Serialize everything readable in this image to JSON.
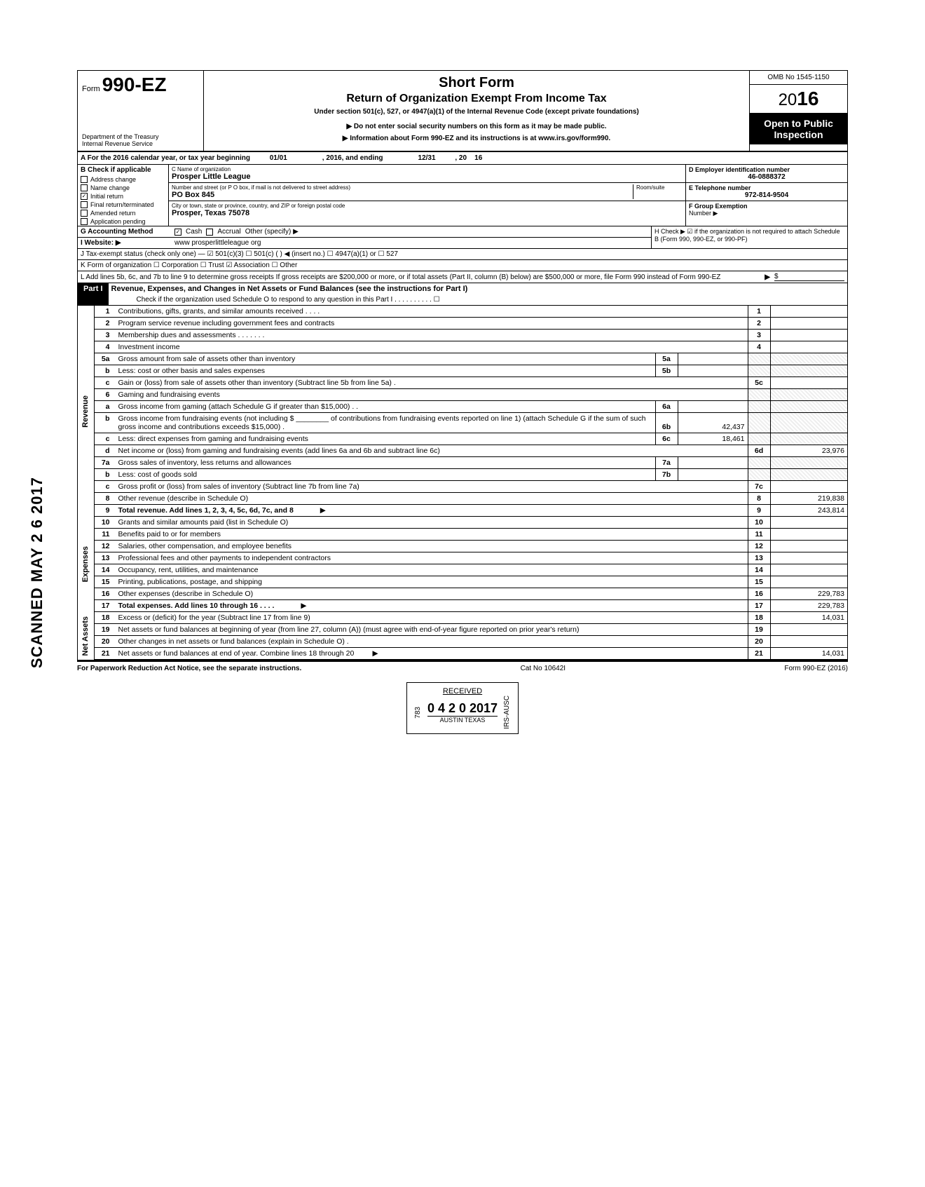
{
  "header": {
    "form_prefix": "Form",
    "form_number": "990-EZ",
    "title": "Short Form",
    "subtitle": "Return of Organization Exempt From Income Tax",
    "under": "Under section 501(c), 527, or 4947(a)(1) of the Internal Revenue Code (except private foundations)",
    "note1": "▶ Do not enter social security numbers on this form as it may be made public.",
    "note2": "▶ Information about Form 990-EZ and its instructions is at www.irs.gov/form990.",
    "dept1": "Department of the Treasury",
    "dept2": "Internal Revenue Service",
    "omb": "OMB No 1545-1150",
    "year_prefix": "20",
    "year_bold": "16",
    "open": "Open to Public Inspection"
  },
  "row_a": {
    "label": "A For the 2016 calendar year, or tax year beginning",
    "begin": "01/01",
    "mid": ", 2016, and ending",
    "end": "12/31",
    "suffix": ", 20",
    "yr": "16"
  },
  "col_b": {
    "header": "B Check if applicable",
    "items": [
      {
        "label": "Address change",
        "checked": false
      },
      {
        "label": "Name change",
        "checked": false
      },
      {
        "label": "Initial return",
        "checked": true
      },
      {
        "label": "Final return/terminated",
        "checked": false
      },
      {
        "label": "Amended return",
        "checked": false
      },
      {
        "label": "Application pending",
        "checked": false
      }
    ]
  },
  "col_c": {
    "name_label": "C Name of organization",
    "name": "Prosper Little League",
    "addr_label": "Number and street (or P O box, if mail is not delivered to street address)",
    "room_label": "Room/suite",
    "addr": "PO Box 845",
    "city_label": "City or town, state or province, country, and ZIP or foreign postal code",
    "city": "Prosper, Texas 75078"
  },
  "col_de": {
    "d_label": "D Employer identification number",
    "d_val": "46-0888372",
    "e_label": "E Telephone number",
    "e_val": "972-814-9504",
    "f_label": "F Group Exemption",
    "f_label2": "Number ▶"
  },
  "meta": {
    "g": "G Accounting Method",
    "g_cash": "Cash",
    "g_accrual": "Accrual",
    "g_other": "Other (specify) ▶",
    "h": "H Check ▶ ☑ if the organization is not required to attach Schedule B (Form 990, 990-EZ, or 990-PF)",
    "i": "I Website: ▶",
    "i_val": "www prosperlittleleague org",
    "j": "J Tax-exempt status (check only one) — ☑ 501(c)(3)   ☐ 501(c) (      ) ◀ (insert no.) ☐ 4947(a)(1) or  ☐ 527",
    "k": "K Form of organization   ☐ Corporation   ☐ Trust   ☑ Association   ☐ Other",
    "l": "L Add lines 5b, 6c, and 7b to line 9 to determine gross receipts  If gross receipts are $200,000 or more, or if total assets (Part II, column (B) below) are $500,000 or more, file Form 990 instead of Form 990-EZ",
    "l_arrow": "▶",
    "l_dollar": "$"
  },
  "part1": {
    "label": "Part I",
    "title": "Revenue, Expenses, and Changes in Net Assets or Fund Balances (see the instructions for Part I)",
    "check": "Check if the organization used Schedule O to respond to any question in this Part I . . . . . . . . . . ☐"
  },
  "sides": {
    "revenue": "Revenue",
    "expenses": "Expenses",
    "netassets": "Net Assets"
  },
  "lines": {
    "l1": {
      "n": "1",
      "d": "Contributions, gifts, grants, and similar amounts received . . . .",
      "rn": "1",
      "rv": ""
    },
    "l2": {
      "n": "2",
      "d": "Program service revenue including government fees and contracts",
      "rn": "2",
      "rv": ""
    },
    "l3": {
      "n": "3",
      "d": "Membership dues and assessments . . . . . . .",
      "rn": "3",
      "rv": ""
    },
    "l4": {
      "n": "4",
      "d": "Investment income",
      "rn": "4",
      "rv": ""
    },
    "l5a": {
      "n": "5a",
      "d": "Gross amount from sale of assets other than inventory",
      "mn": "5a",
      "mv": ""
    },
    "l5b": {
      "n": "b",
      "d": "Less: cost or other basis and sales expenses",
      "mn": "5b",
      "mv": ""
    },
    "l5c": {
      "n": "c",
      "d": "Gain or (loss) from sale of assets other than inventory (Subtract line 5b from line 5a) .",
      "rn": "5c",
      "rv": ""
    },
    "l6": {
      "n": "6",
      "d": "Gaming and fundraising events"
    },
    "l6a": {
      "n": "a",
      "d": "Gross income from gaming (attach Schedule G if greater than $15,000) . .",
      "mn": "6a",
      "mv": ""
    },
    "l6b": {
      "n": "b",
      "d": "Gross income from fundraising events (not including  $ ________ of contributions from fundraising events reported on line 1) (attach Schedule G if the sum of such gross income and contributions exceeds $15,000) .",
      "mn": "6b",
      "mv": "42,437"
    },
    "l6c": {
      "n": "c",
      "d": "Less: direct expenses from gaming and fundraising events",
      "mn": "6c",
      "mv": "18,461"
    },
    "l6d": {
      "n": "d",
      "d": "Net income or (loss) from gaming and fundraising events (add lines 6a and 6b and subtract line 6c)",
      "rn": "6d",
      "rv": "23,976"
    },
    "l7a": {
      "n": "7a",
      "d": "Gross sales of inventory, less returns and allowances",
      "mn": "7a",
      "mv": ""
    },
    "l7b": {
      "n": "b",
      "d": "Less: cost of goods sold",
      "mn": "7b",
      "mv": ""
    },
    "l7c": {
      "n": "c",
      "d": "Gross profit or (loss) from sales of inventory (Subtract line 7b from line 7a)",
      "rn": "7c",
      "rv": ""
    },
    "l8": {
      "n": "8",
      "d": "Other revenue (describe in Schedule O)",
      "rn": "8",
      "rv": "219,838"
    },
    "l9": {
      "n": "9",
      "d": "Total revenue. Add lines 1, 2, 3, 4, 5c, 6d, 7c, and 8",
      "rn": "9",
      "rv": "243,814"
    },
    "l10": {
      "n": "10",
      "d": "Grants and similar amounts paid (list in Schedule O)",
      "rn": "10",
      "rv": ""
    },
    "l11": {
      "n": "11",
      "d": "Benefits paid to or for members",
      "rn": "11",
      "rv": ""
    },
    "l12": {
      "n": "12",
      "d": "Salaries, other compensation, and employee benefits",
      "rn": "12",
      "rv": ""
    },
    "l13": {
      "n": "13",
      "d": "Professional fees and other payments to independent contractors",
      "rn": "13",
      "rv": ""
    },
    "l14": {
      "n": "14",
      "d": "Occupancy, rent, utilities, and maintenance",
      "rn": "14",
      "rv": ""
    },
    "l15": {
      "n": "15",
      "d": "Printing, publications, postage, and shipping",
      "rn": "15",
      "rv": ""
    },
    "l16": {
      "n": "16",
      "d": "Other expenses (describe in Schedule O)",
      "rn": "16",
      "rv": "229,783"
    },
    "l17": {
      "n": "17",
      "d": "Total expenses. Add lines 10 through 16 . . . .",
      "rn": "17",
      "rv": "229,783"
    },
    "l18": {
      "n": "18",
      "d": "Excess or (deficit) for the year (Subtract line 17 from line 9)",
      "rn": "18",
      "rv": "14,031"
    },
    "l19": {
      "n": "19",
      "d": "Net assets or fund balances at beginning of year (from line 27, column (A)) (must agree with end-of-year figure reported on prior year's return)",
      "rn": "19",
      "rv": ""
    },
    "l20": {
      "n": "20",
      "d": "Other changes in net assets or fund balances (explain in Schedule O) .",
      "rn": "20",
      "rv": ""
    },
    "l21": {
      "n": "21",
      "d": "Net assets or fund balances at end of year. Combine lines 18 through 20",
      "rn": "21",
      "rv": "14,031"
    }
  },
  "footer": {
    "left": "For Paperwork Reduction Act Notice, see the separate instructions.",
    "cat": "Cat No 10642I",
    "right": "Form 990-EZ (2016)"
  },
  "stamps": {
    "received": "RECEIVED",
    "num": "783",
    "date": "0 4 2 0 2017",
    "city": "AUSTIN TEXAS",
    "irs": "IRS-AUSC"
  },
  "scanned": "SCANNED MAY 2 6 2017"
}
